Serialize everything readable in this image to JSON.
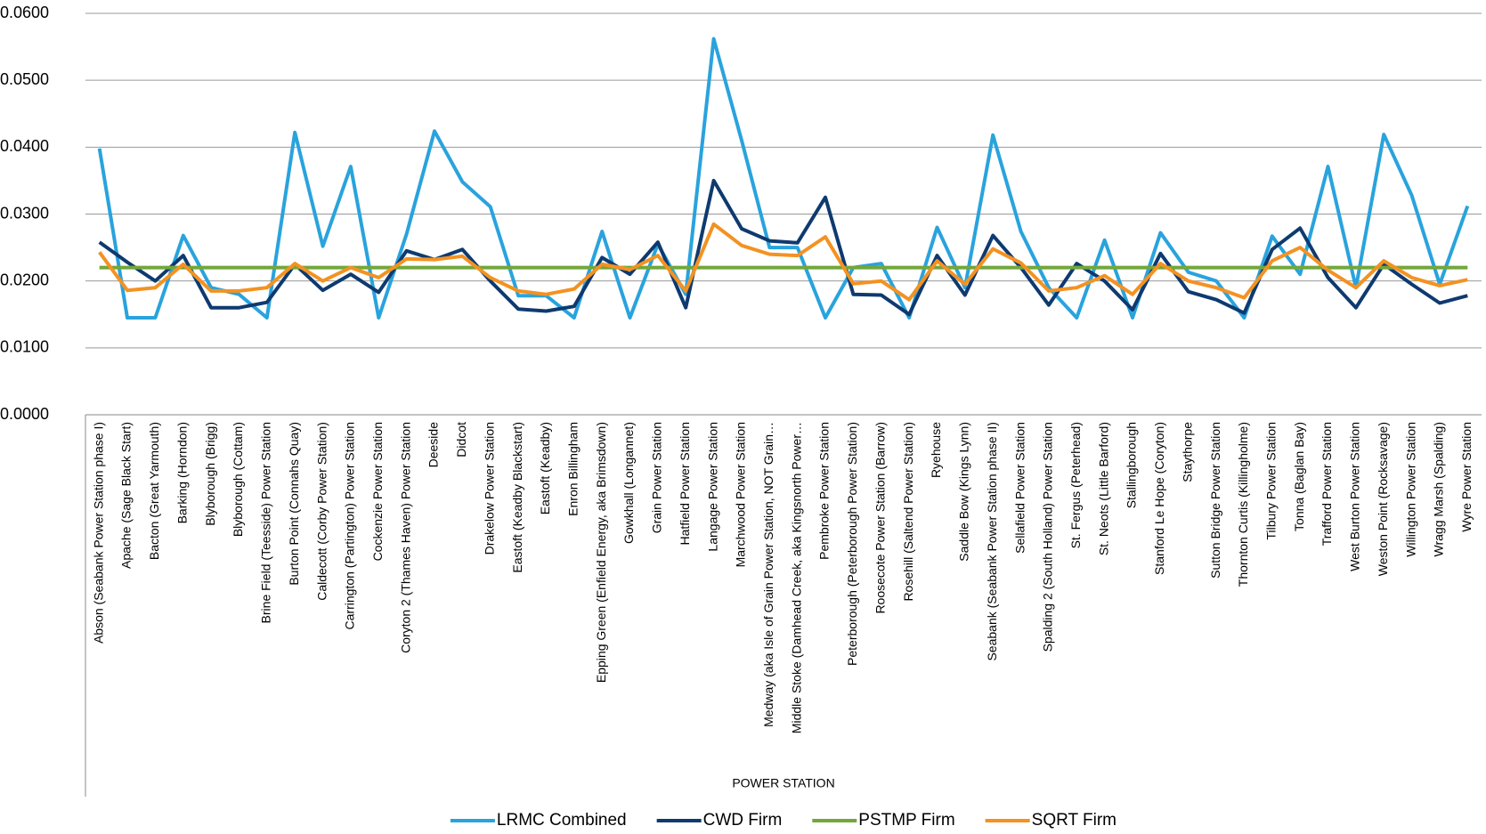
{
  "chart_data": {
    "type": "line",
    "xlabel": "POWER STATION",
    "categories": [
      "Abson (Seabank Power Station phase I)",
      "Apache (Sage Black Start)",
      "Bacton (Great Yarmouth)",
      "Barking (Horndon)",
      "Blyborough (Brigg)",
      "Blyborough (Cottam)",
      "Brine Field (Teesside) Power Station",
      "Burton Point (Connahs Quay)",
      "Caldecott (Corby Power Station)",
      "Carrington (Partington) Power Station",
      "Cockenzie Power Station",
      "Coryton 2 (Thames Haven) Power Station",
      "Deeside",
      "Didcot",
      "Drakelow Power Station",
      "Eastoft (Keadby Blackstart)",
      "Eastoft (Keadby)",
      "Enron Billingham",
      "Epping Green (Enfield Energy, aka Brimsdown)",
      "Gowkhall (Longannet)",
      "Grain Power Station",
      "Hatfield Power Station",
      "Langage Power Station",
      "Marchwood Power Station",
      "Medway (aka Isle of Grain Power Station, NOT Grain…",
      "Middle Stoke (Damhead Creek, aka Kingsnorth Power…",
      "Pembroke Power Station",
      "Peterborough (Peterborough Power Station)",
      "Roosecote Power Station (Barrow)",
      "Rosehill (Saltend Power Station)",
      "Ryehouse",
      "Saddle Bow (Kings Lynn)",
      "Seabank (Seabank Power Station phase II)",
      "Sellafield Power Station",
      "Spalding 2 (South Holland) Power Station",
      "St. Fergus (Peterhead)",
      "St. Neots (Little Barford)",
      "Stallingborough",
      "Stanford Le Hope (Coryton)",
      "Staythorpe",
      "Sutton Bridge Power Station",
      "Thornton Curtis (Killingholme)",
      "Tilbury Power Station",
      "Tonna (Baglan Bay)",
      "Trafford Power Station",
      "West Burton Power Station",
      "Weston Point (Rocksavage)",
      "Willington Power Station",
      "Wragg Marsh (Spalding)",
      "Wyre Power Station"
    ],
    "series": [
      {
        "name": "LRMC Combined",
        "color": "#29a3dd",
        "values": [
          0.0398,
          0.0145,
          0.0145,
          0.0268,
          0.019,
          0.018,
          0.0145,
          0.0422,
          0.0252,
          0.0371,
          0.0145,
          0.027,
          0.0424,
          0.0348,
          0.0311,
          0.0178,
          0.0178,
          0.0145,
          0.0274,
          0.0145,
          0.0255,
          0.018,
          0.0562,
          0.041,
          0.025,
          0.025,
          0.0145,
          0.022,
          0.0226,
          0.0145,
          0.028,
          0.019,
          0.0418,
          0.0274,
          0.019,
          0.0145,
          0.0261,
          0.0145,
          0.0272,
          0.0213,
          0.02,
          0.0145,
          0.0267,
          0.021,
          0.0371,
          0.019,
          0.0419,
          0.0328,
          0.0195,
          0.0312
        ]
      },
      {
        "name": "CWD Firm",
        "color": "#0e3a6f",
        "values": [
          0.0258,
          0.0228,
          0.02,
          0.0238,
          0.016,
          0.016,
          0.0168,
          0.0225,
          0.0186,
          0.021,
          0.0183,
          0.0245,
          0.0232,
          0.0247,
          0.02,
          0.0158,
          0.0155,
          0.0162,
          0.0235,
          0.021,
          0.0258,
          0.016,
          0.035,
          0.0278,
          0.026,
          0.0257,
          0.0325,
          0.018,
          0.0179,
          0.015,
          0.0238,
          0.0179,
          0.0268,
          0.022,
          0.0164,
          0.0226,
          0.02,
          0.0157,
          0.0241,
          0.0184,
          0.0172,
          0.0152,
          0.0247,
          0.0279,
          0.0205,
          0.016,
          0.0225,
          0.0195,
          0.0167,
          0.0178
        ]
      },
      {
        "name": "PSTMP Firm",
        "color": "#72a73a",
        "values": [
          0.022,
          0.022,
          0.022,
          0.022,
          0.022,
          0.022,
          0.022,
          0.022,
          0.022,
          0.022,
          0.022,
          0.022,
          0.022,
          0.022,
          0.022,
          0.022,
          0.022,
          0.022,
          0.022,
          0.022,
          0.022,
          0.022,
          0.022,
          0.022,
          0.022,
          0.022,
          0.022,
          0.022,
          0.022,
          0.022,
          0.022,
          0.022,
          0.022,
          0.022,
          0.022,
          0.022,
          0.022,
          0.022,
          0.022,
          0.022,
          0.022,
          0.022,
          0.022,
          0.022,
          0.022,
          0.022,
          0.022,
          0.022,
          0.022,
          0.022
        ]
      },
      {
        "name": "SQRT Firm",
        "color": "#f39222",
        "values": [
          0.0243,
          0.0186,
          0.019,
          0.0225,
          0.0185,
          0.0185,
          0.019,
          0.0226,
          0.02,
          0.022,
          0.0205,
          0.0233,
          0.0232,
          0.0237,
          0.0205,
          0.0185,
          0.018,
          0.0188,
          0.0225,
          0.0217,
          0.0238,
          0.0185,
          0.0285,
          0.0253,
          0.024,
          0.0238,
          0.0266,
          0.0196,
          0.02,
          0.0172,
          0.023,
          0.0195,
          0.0248,
          0.0227,
          0.0185,
          0.019,
          0.0208,
          0.018,
          0.0226,
          0.02,
          0.019,
          0.0175,
          0.023,
          0.025,
          0.0216,
          0.019,
          0.023,
          0.0205,
          0.0193,
          0.0202
        ]
      }
    ],
    "ylim": [
      0,
      0.06
    ],
    "yticks": [
      {
        "value": 0,
        "label": "0.0000"
      },
      {
        "value": 0.01,
        "label": "0.0100"
      },
      {
        "value": 0.02,
        "label": "0.0200"
      },
      {
        "value": 0.03,
        "label": "0.0300"
      },
      {
        "value": 0.04,
        "label": "0.0400"
      },
      {
        "value": 0.05,
        "label": "0.0500"
      },
      {
        "value": 0.06,
        "label": "0.0600"
      }
    ],
    "grid": true,
    "legend": "bottom"
  }
}
